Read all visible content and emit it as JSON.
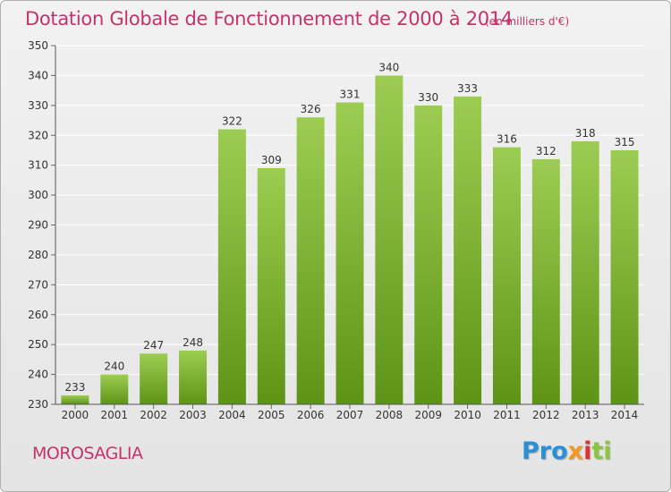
{
  "header": {
    "title": "Dotation Globale de Fonctionnement de 2000 à 2014",
    "unit": "(en milliers d'€)"
  },
  "footer": {
    "place": "MOROSAGLIA",
    "logo": [
      "Pro",
      "x",
      "i",
      "ti"
    ]
  },
  "colors": {
    "title": "#c8326a",
    "bar_top": "#9ccd52",
    "bar_bottom": "#5e9416",
    "grid": "#ffffff"
  },
  "chart_data": {
    "type": "bar",
    "categories": [
      "2000",
      "2001",
      "2002",
      "2003",
      "2004",
      "2005",
      "2006",
      "2007",
      "2008",
      "2009",
      "2010",
      "2011",
      "2012",
      "2013",
      "2014"
    ],
    "values": [
      233,
      240,
      247,
      248,
      322,
      309,
      326,
      331,
      340,
      330,
      333,
      316,
      312,
      318,
      315
    ],
    "title": "Dotation Globale de Fonctionnement de 2000 à 2014",
    "subtitle": "(en milliers d'€)",
    "xlabel": "",
    "ylabel": "",
    "ylim": [
      230,
      350
    ],
    "yticks": [
      230,
      240,
      250,
      260,
      270,
      280,
      290,
      300,
      310,
      320,
      330,
      340,
      350
    ],
    "grid": true,
    "data_labels": true,
    "legend": "none"
  }
}
